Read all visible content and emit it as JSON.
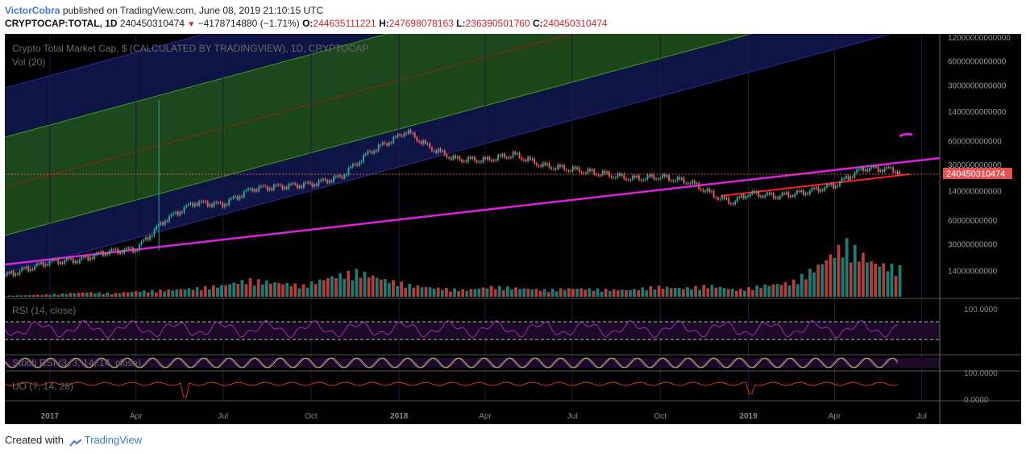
{
  "header": {
    "author": "VictorCobra",
    "published_text": "published on TradingView.com, June 08, 2019 21:10:15 UTC",
    "symbol": "CRYPTOCAP:TOTAL, 1D",
    "last_value": "240450310474",
    "change": "−4178714880 (−1.71%)",
    "open_label": "O:",
    "open": "244635111221",
    "high_label": "H:",
    "high": "247698078163",
    "low_label": "L:",
    "low": "236390501760",
    "close_label": "C:",
    "close": "240450310474"
  },
  "panes": {
    "main_title": "Crypto Total Market Cap, $ (CALCULATED BY TRADINGVIEW), 1D, CRYPTOCAP",
    "volume_label": "Vol (20)",
    "rsi_label": "RSI (14, close)",
    "stoch_label": "Stoch RSI (3, 3, 14, 14, close)",
    "uo_label": "UO (7, 14, 28)",
    "price_badge": "240450310474",
    "rsi_axis_label": "100.0000",
    "uo_axis_top": "100.0000",
    "uo_axis_bottom": "0.0000"
  },
  "footer": {
    "created_with": "Created with",
    "brand": "TradingView"
  },
  "colors": {
    "background": "#000000",
    "up": "#26a69a",
    "down": "#ef5350",
    "channel_green": "#1f4a1a",
    "channel_blue": "#0f1548",
    "magenta": "#e020e0",
    "red_trend": "#ff2020",
    "rsi": "#9b2fae",
    "uo": "#d9331a",
    "price_badge": "#e35354"
  },
  "chart_data": {
    "type": "candlestick",
    "title": "Crypto Total Market Cap, $ (CALCULATED BY TRADINGVIEW), 1D, CRYPTOCAP",
    "y_scale": "log",
    "y_ticks": [
      "12000000000000",
      "6000000000000",
      "3000000000000",
      "1400000000000",
      "600000000000",
      "300000000000",
      "140000000000",
      "60000000000",
      "30000000000",
      "14000000000"
    ],
    "x_ticks": [
      "2017",
      "Apr",
      "Jul",
      "Oct",
      "2018",
      "Apr",
      "Jul",
      "Oct",
      "2019",
      "Apr",
      "Jul"
    ],
    "x_range": [
      "2016-11-15",
      "2019-07-20"
    ],
    "x": [
      "2016-11-15",
      "2017-01-01",
      "2017-02-01",
      "2017-03-01",
      "2017-04-01",
      "2017-05-01",
      "2017-06-01",
      "2017-07-01",
      "2017-08-01",
      "2017-09-01",
      "2017-10-01",
      "2017-11-01",
      "2017-12-01",
      "2018-01-01",
      "2018-01-08",
      "2018-02-01",
      "2018-03-01",
      "2018-04-01",
      "2018-05-01",
      "2018-06-01",
      "2018-07-01",
      "2018-08-01",
      "2018-09-01",
      "2018-10-01",
      "2018-11-01",
      "2018-12-01",
      "2018-12-15",
      "2019-01-01",
      "2019-02-01",
      "2019-03-01",
      "2019-04-01",
      "2019-05-01",
      "2019-06-01",
      "2019-06-08"
    ],
    "close": [
      12000000000,
      18000000000,
      19000000000,
      24000000000,
      26000000000,
      60000000000,
      100000000000,
      95000000000,
      150000000000,
      160000000000,
      170000000000,
      210000000000,
      430000000000,
      680000000000,
      800000000000,
      500000000000,
      350000000000,
      340000000000,
      400000000000,
      290000000000,
      260000000000,
      230000000000,
      200000000000,
      210000000000,
      180000000000,
      115000000000,
      100000000000,
      130000000000,
      120000000000,
      135000000000,
      165000000000,
      270000000000,
      260000000000,
      240450310474
    ],
    "volume": {
      "label": "Vol (20)",
      "levels": [
        0.02,
        0.03,
        0.05,
        0.08,
        0.06,
        0.1,
        0.12,
        0.15,
        0.2,
        0.3,
        0.25,
        0.2,
        0.35,
        0.45,
        0.3,
        0.2,
        0.15,
        0.12,
        0.18,
        0.15,
        0.12,
        0.15,
        0.13,
        0.12,
        0.18,
        0.15,
        0.2,
        0.12,
        0.2,
        0.25,
        0.55,
        0.95,
        0.6,
        0.5
      ]
    },
    "rsi": {
      "label": "RSI (14, close)",
      "axis_label": "100.0000",
      "bands": [
        70,
        30
      ]
    },
    "stoch_rsi": {
      "label": "Stoch RSI (3, 3, 14, 14, close)"
    },
    "uo": {
      "label": "UO (7, 14, 28)",
      "axis_labels": [
        "100.0000",
        "0.0000"
      ]
    }
  }
}
